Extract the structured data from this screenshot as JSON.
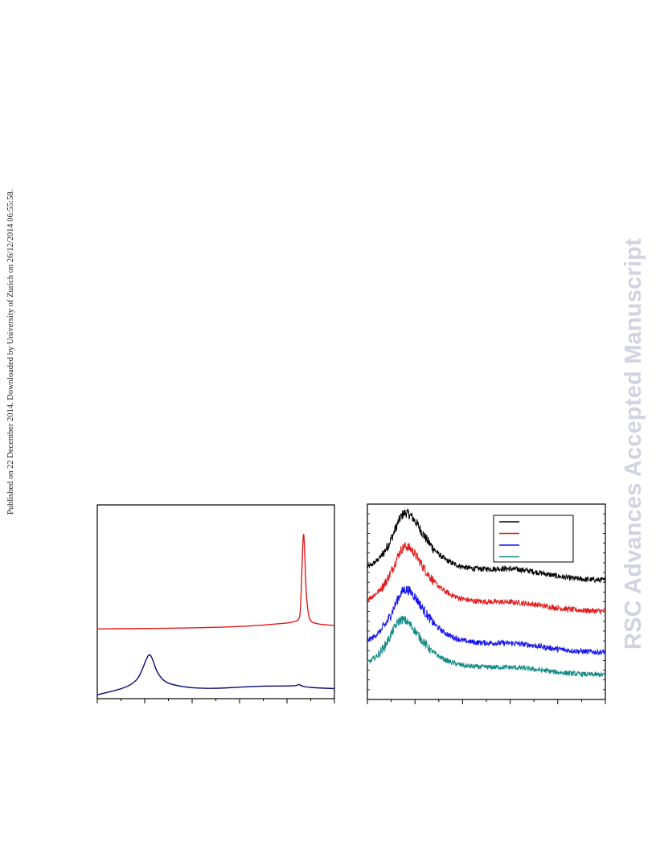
{
  "margin_note": "Published on 22 December 2014. Downloaded by University of Zurich on 26/12/2014 06:55:58.",
  "watermark": "RSC Advances Accepted Manuscript",
  "colors": {
    "red": "#e41a1c",
    "navy": "#0a0a7a",
    "black": "#000000",
    "blue": "#1414f0",
    "teal": "#128a84"
  },
  "chart_data": [
    {
      "type": "line",
      "title": "",
      "xlabel": "",
      "ylabel": "",
      "xlim": [
        0,
        100
      ],
      "ylim": [
        0,
        100
      ],
      "grid": false,
      "legend": "none",
      "series": [
        {
          "color": "red",
          "x": [
            0,
            20,
            40,
            60,
            70,
            75,
            80,
            82,
            84,
            85,
            85.5,
            86,
            86.5,
            87,
            87.5,
            88,
            89,
            90,
            92,
            95,
            100
          ],
          "y": [
            36,
            36.2,
            36.5,
            37.2,
            38,
            38.5,
            39,
            39.5,
            40,
            41,
            43,
            55,
            75,
            88,
            75,
            55,
            43,
            39.8,
            38.8,
            38.2,
            37.8
          ]
        },
        {
          "color": "navy",
          "x": [
            0,
            5,
            10,
            14,
            17,
            19,
            20.5,
            22,
            23.5,
            25,
            28,
            32,
            40,
            50,
            60,
            70,
            80,
            84,
            85,
            86,
            88,
            92,
            100
          ],
          "y": [
            2,
            3.5,
            5,
            7,
            10,
            15,
            20,
            23.5,
            20,
            14,
            9,
            7,
            5.5,
            5.2,
            6,
            6.5,
            6.5,
            6.7,
            7.5,
            6.6,
            6,
            5.6,
            5.2
          ]
        }
      ]
    },
    {
      "type": "line",
      "title": "",
      "xlabel": "",
      "ylabel": "",
      "xlim": [
        0,
        100
      ],
      "ylim": [
        0,
        100
      ],
      "grid": false,
      "legend": "top-right",
      "series": [
        {
          "color": "black",
          "base": 61,
          "amp": 34,
          "peak": 16,
          "tail": 4,
          "noise": 1.4,
          "x": [
            0,
            100
          ]
        },
        {
          "color": "red",
          "base": 45,
          "amp": 33,
          "peak": 16,
          "tail": 3,
          "noise": 1.4,
          "x": [
            0,
            100
          ]
        },
        {
          "color": "blue",
          "base": 24,
          "amp": 32,
          "peak": 16,
          "tail": 3,
          "noise": 1.4,
          "x": [
            0,
            100
          ]
        },
        {
          "color": "teal",
          "base": 12.5,
          "amp": 28,
          "peak": 14.5,
          "tail": 2.5,
          "noise": 1.3,
          "x": [
            0,
            100
          ]
        }
      ]
    }
  ]
}
